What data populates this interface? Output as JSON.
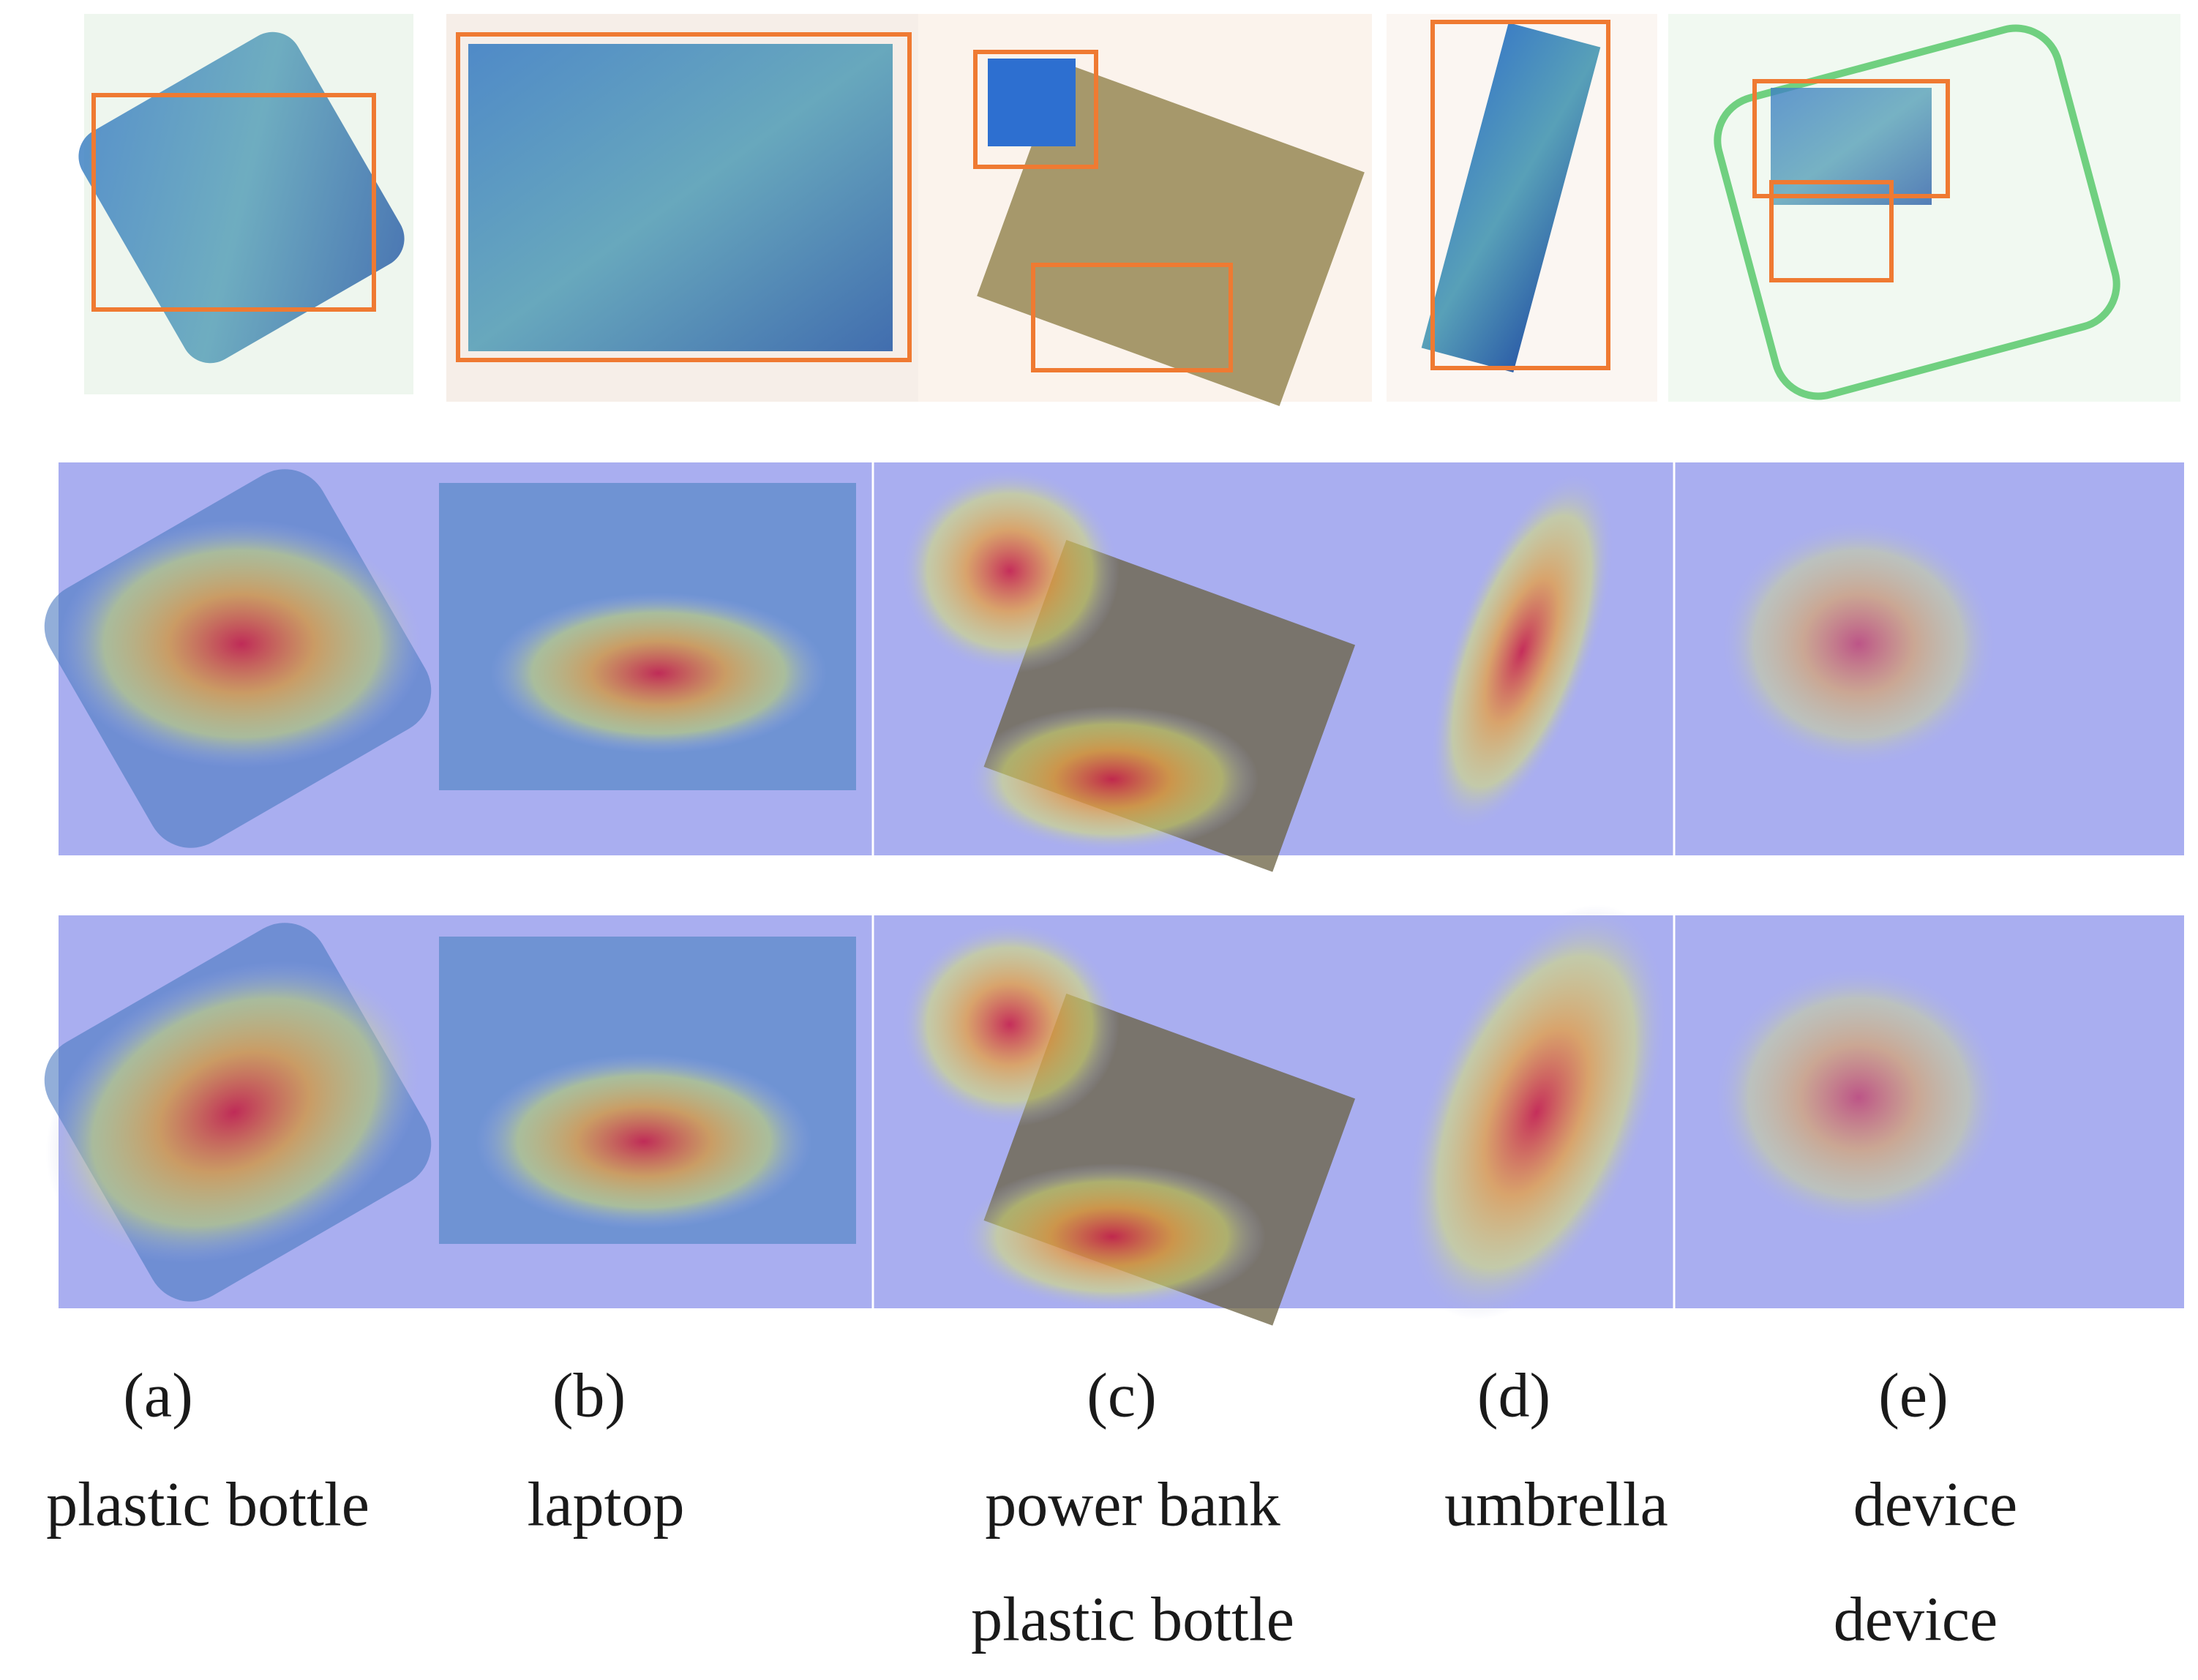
{
  "figure": {
    "columns": [
      {
        "letter": "(a)",
        "labels": [
          "plastic bottle"
        ]
      },
      {
        "letter": "(b)",
        "labels": [
          "laptop"
        ]
      },
      {
        "letter": "(c)",
        "labels": [
          "power bank",
          "plastic bottle"
        ]
      },
      {
        "letter": "(d)",
        "labels": [
          "umbrella"
        ]
      },
      {
        "letter": "(e)",
        "labels": [
          "device",
          "device"
        ]
      }
    ]
  }
}
